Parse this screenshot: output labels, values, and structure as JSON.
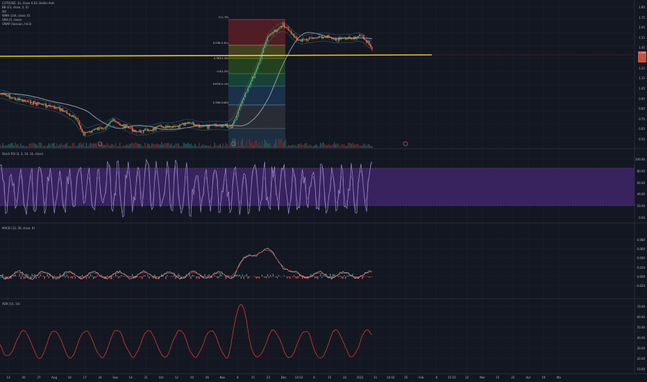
{
  "legend": {
    "symbol": "COTI/USD, 1h, Close 0.03, Heikin Ashi",
    "lines": [
      "BB (21, close, 2, 0)",
      "Vol",
      "WMA (144, close, 0)",
      "SMA (5, close)",
      "VWAP (Session, hlc3)"
    ],
    "stoch": "Stoch RSI (3, 3, 14, 14, close)",
    "macd": "MACD (12, 26, close, 9)",
    "adx": "ADX (14, 14)"
  },
  "fib_labels": [
    "0 (1.79)",
    "0.236 (1.61)",
    "0.382(1.36)",
    "0.5(1.25)",
    "0.618 (1.14)",
    "0.786 (0.89)"
  ],
  "y_axis": {
    "main": [
      "1.85",
      "1.75",
      "1.65",
      "1.55",
      "1.45",
      "1.35",
      "1.25",
      "1.15",
      "1.05",
      "0.95",
      "0.85",
      "0.75",
      "0.65",
      "0.55"
    ],
    "stoch": [
      "100.00",
      "80.00",
      "60.00",
      "40.00",
      "20.00",
      "0.00"
    ],
    "macd": [
      "0.080",
      "0.060",
      "0.040",
      "0.020",
      "0.000",
      "-0.020"
    ],
    "adx": [
      "70.00",
      "60.00",
      "50.00",
      "40.00",
      "30.00",
      "20.00",
      "10.00"
    ]
  },
  "price_tag": "1.225",
  "x_axis": [
    "13",
    "20",
    "27",
    "Aug",
    "10",
    "17",
    "24",
    "Sep",
    "14",
    "21",
    "Oct",
    "12",
    "19",
    "26",
    "Nov",
    "8",
    "15",
    "22",
    "Dec",
    "14 03",
    "8",
    "15",
    "22",
    "2021",
    "11",
    "14 03",
    "25",
    "Feb",
    "8",
    "15 03",
    "22",
    "Mar",
    "15",
    "22",
    "Apr",
    "19",
    "Ma"
  ],
  "colors": {
    "background": "#131722",
    "candle_up": "#26a69a",
    "candle_down": "#ef5350",
    "horizontal_line": "#f5d000",
    "stoch_band": "#7e57c2",
    "adx_line": "#e53935"
  }
}
